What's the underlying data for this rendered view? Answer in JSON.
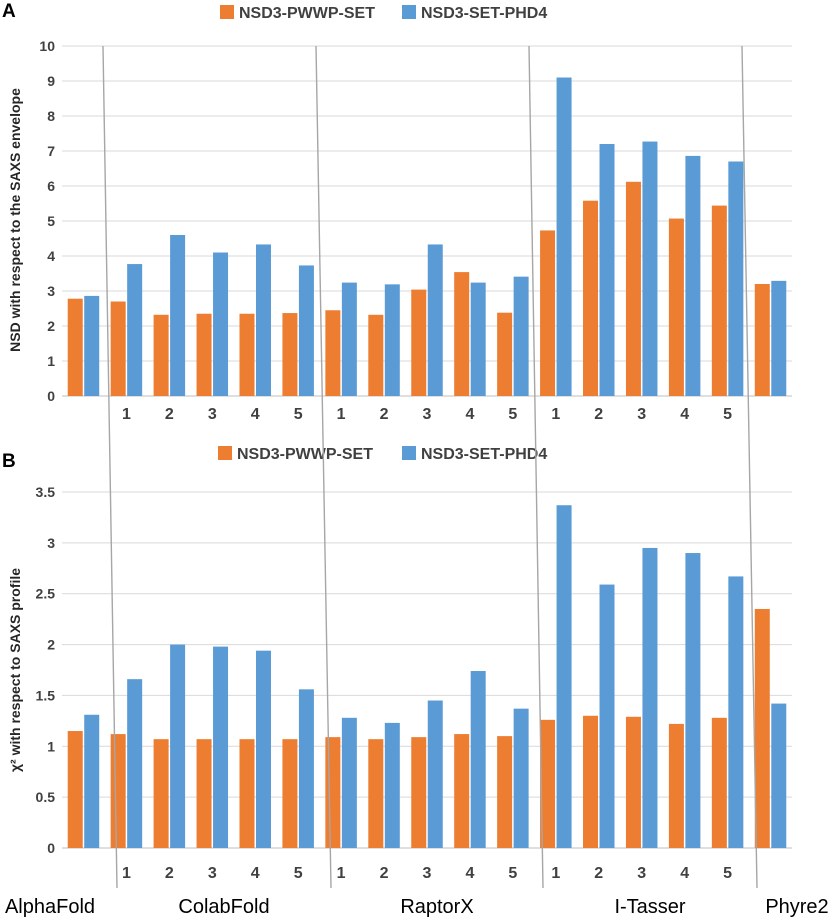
{
  "colors": {
    "series1": "#ed7d31",
    "series2": "#5b9bd5"
  },
  "group_labels": [
    "AlphaFold",
    "ColabFold",
    "RaptorX",
    "I-Tasser",
    "Phyre2"
  ],
  "chart_data": [
    {
      "panel": "A",
      "type": "bar",
      "ylabel": "NSD with respect to the SAXS  envelope",
      "ylim": [
        0,
        10
      ],
      "yticks": [
        "0",
        "1",
        "2",
        "3",
        "4",
        "5",
        "6",
        "7",
        "8",
        "9",
        "10"
      ],
      "categories": [
        "",
        "1",
        "2",
        "3",
        "4",
        "5",
        "1",
        "2",
        "3",
        "4",
        "5",
        "1",
        "2",
        "3",
        "4",
        "5",
        ""
      ],
      "series": [
        {
          "name": "NSD3-PWWP-SET",
          "values": [
            2.78,
            2.7,
            2.32,
            2.35,
            2.35,
            2.37,
            2.45,
            2.32,
            3.04,
            3.54,
            2.38,
            4.73,
            5.58,
            6.12,
            5.07,
            5.44,
            3.2
          ]
        },
        {
          "name": "NSD3-SET-PHD4",
          "values": [
            2.86,
            3.77,
            4.6,
            4.1,
            4.33,
            3.73,
            3.24,
            3.19,
            4.33,
            3.24,
            3.41,
            9.1,
            7.2,
            7.27,
            6.86,
            6.7,
            3.29
          ]
        }
      ]
    },
    {
      "panel": "B",
      "type": "bar",
      "ylabel": "χ² with respect to SAXS profile",
      "ylim": [
        0,
        3.5
      ],
      "yticks": [
        "0",
        "0.5",
        "1",
        "1.5",
        "2",
        "2.5",
        "3",
        "3.5"
      ],
      "categories": [
        "",
        "1",
        "2",
        "3",
        "4",
        "5",
        "1",
        "2",
        "3",
        "4",
        "5",
        "1",
        "2",
        "3",
        "4",
        "5",
        ""
      ],
      "series": [
        {
          "name": "NSD3-PWWP-SET",
          "values": [
            1.15,
            1.12,
            1.07,
            1.07,
            1.07,
            1.07,
            1.09,
            1.07,
            1.09,
            1.12,
            1.1,
            1.26,
            1.3,
            1.29,
            1.22,
            1.28,
            2.35
          ]
        },
        {
          "name": "NSD3-SET-PHD4",
          "values": [
            1.31,
            1.66,
            2.0,
            1.98,
            1.94,
            1.56,
            1.28,
            1.23,
            1.45,
            1.74,
            1.37,
            3.37,
            2.59,
            2.95,
            2.9,
            2.67,
            1.42
          ]
        }
      ]
    }
  ]
}
